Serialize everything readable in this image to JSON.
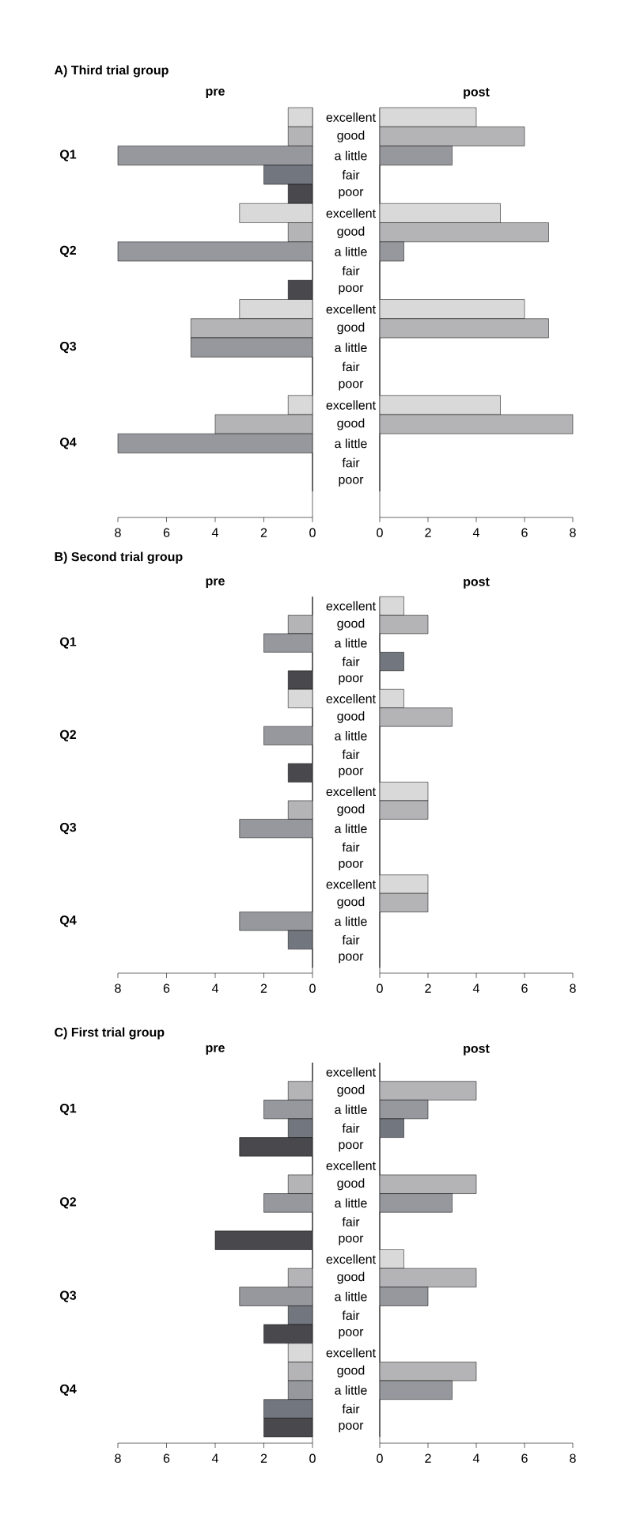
{
  "chart_data": [
    {
      "type": "bar",
      "orientation": "horizontal",
      "title": "pre",
      "annotations": [
        "A) Third trial group",
        "Q1",
        "Q2",
        "Q3",
        "Q4"
      ],
      "categories": [
        "excellent",
        "good",
        "a little",
        "fair",
        "poor",
        "excellent",
        "good",
        "a little",
        "fair",
        "poor",
        "excellent",
        "good",
        "a little",
        "fair",
        "poor",
        "excellent",
        "good",
        "a little",
        "fair",
        "poor"
      ],
      "values": [
        1,
        1,
        8,
        2,
        1,
        3,
        1,
        8,
        0,
        1,
        3,
        5,
        5,
        0,
        0,
        1,
        4,
        8,
        0,
        0
      ],
      "colors": [
        "#d9d9d9",
        "#b4b4b6",
        "#97989d",
        "#72767e",
        "#48484d",
        "#d9d9d9",
        "#b4b4b6",
        "#97989d",
        "#72767e",
        "#48484d",
        "#d9d9d9",
        "#b4b4b6",
        "#97989d",
        "#72767e",
        "#48484d",
        "#d9d9d9",
        "#b4b4b6",
        "#97989d",
        "#72767e",
        "#48484d"
      ],
      "xlim": [
        8,
        0
      ],
      "xticks": [
        8,
        6,
        4,
        2,
        0
      ]
    },
    {
      "type": "bar",
      "orientation": "horizontal",
      "title": "post",
      "tick_labels": "x",
      "values": [
        4,
        6,
        3,
        0,
        0,
        5,
        7,
        1,
        0,
        0,
        6,
        7,
        0,
        0,
        0,
        5,
        8,
        0,
        0,
        0
      ],
      "colors": [
        "#d9d9d9",
        "#b4b4b6",
        "#97989d",
        "#72767e",
        "#48484d",
        "#d9d9d9",
        "#b4b4b6",
        "#97989d",
        "#72767e",
        "#48484d",
        "#d9d9d9",
        "#b4b4b6",
        "#97989d",
        "#72767e",
        "#48484d",
        "#d9d9d9",
        "#b4b4b6",
        "#97989d",
        "#72767e",
        "#48484d"
      ],
      "xlim": [
        0,
        8
      ],
      "xticks": [
        0,
        2,
        4,
        6,
        8
      ]
    },
    {
      "type": "bar",
      "orientation": "horizontal",
      "title": "pre",
      "annotations": [
        "B) Second trial group",
        "Q1",
        "Q2",
        "Q3",
        "Q4"
      ],
      "categories": [
        "excellent",
        "good",
        "a little",
        "fair",
        "poor",
        "excellent",
        "good",
        "a little",
        "fair",
        "poor",
        "excellent",
        "good",
        "a little",
        "fair",
        "poor",
        "excellent",
        "good",
        "a little",
        "fair",
        "poor"
      ],
      "values": [
        0,
        1,
        2,
        0,
        1,
        1,
        0,
        2,
        0,
        1,
        0,
        1,
        3,
        0,
        0,
        0,
        0,
        3,
        1,
        0
      ],
      "colors": [
        "#d9d9d9",
        "#b4b4b6",
        "#97989d",
        "#72767e",
        "#48484d",
        "#d9d9d9",
        "#b4b4b6",
        "#97989d",
        "#72767e",
        "#48484d",
        "#d9d9d9",
        "#b4b4b6",
        "#97989d",
        "#72767e",
        "#48484d",
        "#d9d9d9",
        "#b4b4b6",
        "#97989d",
        "#72767e",
        "#48484d"
      ],
      "xlim": [
        8,
        0
      ],
      "xticks": [
        8,
        6,
        4,
        2,
        0
      ]
    },
    {
      "type": "bar",
      "orientation": "horizontal",
      "title": "post",
      "tick_labels": "x",
      "values": [
        1,
        2,
        0,
        1,
        0,
        1,
        3,
        0,
        0,
        0,
        2,
        2,
        0,
        0,
        0,
        2,
        2,
        0,
        0,
        0
      ],
      "colors": [
        "#d9d9d9",
        "#b4b4b6",
        "#97989d",
        "#72767e",
        "#48484d",
        "#d9d9d9",
        "#b4b4b6",
        "#97989d",
        "#72767e",
        "#48484d",
        "#d9d9d9",
        "#b4b4b6",
        "#97989d",
        "#72767e",
        "#48484d",
        "#d9d9d9",
        "#b4b4b6",
        "#97989d",
        "#72767e",
        "#48484d"
      ],
      "xlim": [
        0,
        8
      ],
      "xticks": [
        0,
        2,
        4,
        6,
        8
      ]
    },
    {
      "type": "bar",
      "orientation": "horizontal",
      "title": "pre",
      "annotations": [
        "C) First trial group",
        "Q1",
        "Q2",
        "Q3",
        "Q4"
      ],
      "categories": [
        "excellent",
        "good",
        "a little",
        "fair",
        "poor",
        "excellent",
        "good",
        "a little",
        "fair",
        "poor",
        "excellent",
        "good",
        "a little",
        "fair",
        "poor",
        "excellent",
        "good",
        "a little",
        "fair",
        "poor"
      ],
      "values": [
        0,
        1,
        2,
        1,
        3,
        0,
        1,
        2,
        0,
        4,
        0,
        1,
        3,
        1,
        2,
        1,
        1,
        1,
        2,
        2
      ],
      "colors": [
        "#d9d9d9",
        "#b4b4b6",
        "#97989d",
        "#72767e",
        "#48484d",
        "#d9d9d9",
        "#b4b4b6",
        "#97989d",
        "#72767e",
        "#48484d",
        "#d9d9d9",
        "#b4b4b6",
        "#97989d",
        "#72767e",
        "#48484d",
        "#d9d9d9",
        "#b4b4b6",
        "#97989d",
        "#72767e",
        "#48484d"
      ],
      "xlim": [
        8,
        0
      ],
      "xticks": [
        8,
        6,
        4,
        2,
        0
      ]
    },
    {
      "type": "bar",
      "orientation": "horizontal",
      "title": "post",
      "tick_labels": "x",
      "values": [
        0,
        4,
        2,
        1,
        0,
        0,
        4,
        3,
        0,
        0,
        1,
        4,
        2,
        0,
        0,
        0,
        4,
        3,
        0,
        0
      ],
      "colors": [
        "#d9d9d9",
        "#b4b4b6",
        "#97989d",
        "#72767e",
        "#48484d",
        "#d9d9d9",
        "#b4b4b6",
        "#97989d",
        "#72767e",
        "#48484d",
        "#d9d9d9",
        "#b4b4b6",
        "#97989d",
        "#72767e",
        "#48484d",
        "#d9d9d9",
        "#b4b4b6",
        "#97989d",
        "#72767e",
        "#48484d"
      ],
      "xlim": [
        0,
        8
      ],
      "xticks": [
        0,
        2,
        4,
        6,
        8
      ]
    }
  ]
}
